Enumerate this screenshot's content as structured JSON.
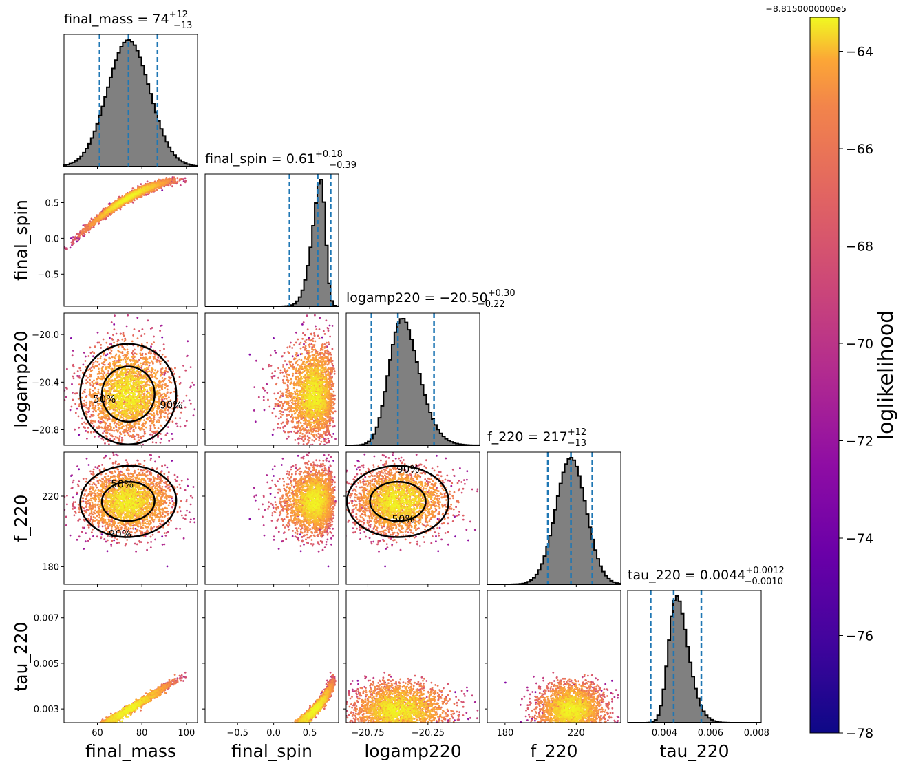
{
  "chart_data": {
    "type": "corner",
    "parameters": [
      "final_mass",
      "final_spin",
      "logamp220",
      "f_220",
      "tau_220"
    ],
    "axis_labels": [
      "final_mass",
      "final_spin",
      "logamp220",
      "f_220",
      "tau_220"
    ],
    "ranges": [
      [
        45,
        105
      ],
      [
        -0.95,
        0.9
      ],
      [
        -20.93,
        -19.82
      ],
      [
        170,
        245
      ],
      [
        0.0024,
        0.0082
      ]
    ],
    "x_ticks": [
      {
        "values": [
          60,
          80,
          100
        ],
        "labels": [
          "60",
          "80",
          "100"
        ]
      },
      {
        "values": [
          -0.5,
          0.0,
          0.5
        ],
        "labels": [
          "−0.5",
          "0.0",
          "0.5"
        ]
      },
      {
        "values": [
          -20.75,
          -20.25
        ],
        "labels": [
          "−20.75",
          "−20.25"
        ]
      },
      {
        "values": [
          180,
          220
        ],
        "labels": [
          "180",
          "220"
        ]
      },
      {
        "values": [
          0.004,
          0.006,
          0.008
        ],
        "labels": [
          "0.004",
          "0.006",
          "0.008"
        ]
      }
    ],
    "y_ticks": [
      null,
      {
        "values": [
          0.5,
          0.0,
          -0.5
        ],
        "labels": [
          "0.5",
          "0.0",
          "−0.5"
        ]
      },
      {
        "values": [
          -20.0,
          -20.4,
          -20.8
        ],
        "labels": [
          "−20.0",
          "−20.4",
          "−20.8"
        ]
      },
      {
        "values": [
          220,
          180
        ],
        "labels": [
          "220",
          "180"
        ]
      },
      {
        "values": [
          0.007,
          0.005,
          0.003
        ],
        "labels": [
          "0.007",
          "0.005",
          "0.003"
        ]
      }
    ],
    "marginals": [
      {
        "title": "final_mass",
        "median": "74",
        "plus": "+12",
        "minus": "−13",
        "center": 74,
        "sigma": 9.5,
        "skew": 0.0,
        "quantiles": [
          61,
          74,
          87
        ]
      },
      {
        "title": "final_spin",
        "median": "0.61",
        "plus": "+0.18",
        "minus": "−0.39",
        "center": 0.72,
        "sigma": 0.15,
        "skew": -3.0,
        "quantiles": [
          0.22,
          0.61,
          0.79
        ]
      },
      {
        "title": "logamp220",
        "median": "−20.50",
        "plus": "+0.30",
        "minus": "−0.22",
        "center": -20.56,
        "sigma": 0.18,
        "skew": 1.8,
        "quantiles": [
          -20.72,
          -20.5,
          -20.2
        ]
      },
      {
        "title": "f_220",
        "median": "217",
        "plus": "+12",
        "minus": "−13",
        "center": 217,
        "sigma": 8.5,
        "skew": 0.0,
        "quantiles": [
          204,
          217,
          229
        ]
      },
      {
        "title": "tau_220",
        "median": "0.0044",
        "plus": "+0.0012",
        "minus": "−0.0010",
        "center": 0.0042,
        "sigma": 0.00065,
        "skew": 2.2,
        "quantiles": [
          0.0034,
          0.0044,
          0.0056
        ]
      }
    ],
    "contour_labels": [
      "50%",
      "90%"
    ],
    "colorbar": {
      "label": "loglikelihood",
      "offset": "−8.8150000000e5",
      "range": [
        -78,
        -63.3
      ],
      "ticks": [
        -64,
        -66,
        -68,
        -70,
        -72,
        -74,
        -76,
        -78
      ],
      "tick_labels": [
        "−64",
        "−66",
        "−68",
        "−70",
        "−72",
        "−74",
        "−76",
        "−78"
      ],
      "colormap": "plasma"
    },
    "histogram_color": "#808080",
    "quantile_line_color": "#1f77b4",
    "contour_color": "#000000",
    "grid": false
  }
}
